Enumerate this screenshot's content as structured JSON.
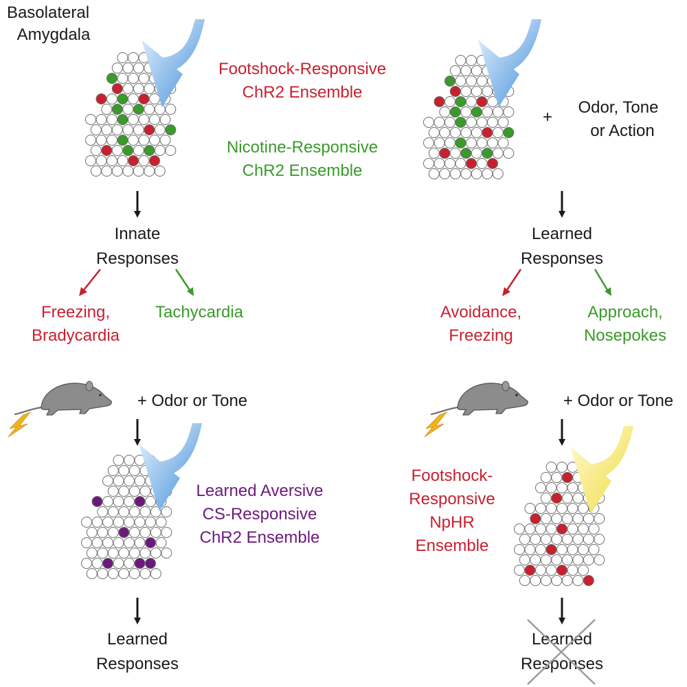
{
  "colors": {
    "red": "#c8202f",
    "green": "#3a9a2a",
    "purple": "#6b1a7c",
    "chr2_light": "#7fb3e6",
    "nphr_light": "#f7eb7a",
    "rat": "#8c8c8c",
    "shock": "#f0b41e"
  },
  "top_left": {
    "region_label": [
      "Basolateral",
      "Amygdala"
    ],
    "footshock_ensemble": [
      "Footshock-Responsive",
      "ChR2 Ensemble"
    ],
    "nicotine_ensemble": [
      "Nicotine-Responsive",
      "ChR2 Ensemble"
    ],
    "outcome": [
      "Innate",
      "Responses"
    ],
    "aversive_responses": [
      "Freezing,",
      "Bradycardia"
    ],
    "appetitive_responses": [
      "Tachycardia"
    ]
  },
  "top_right": {
    "plus": "+",
    "stimulus": [
      "Odor, Tone",
      "or Action"
    ],
    "outcome": [
      "Learned",
      "Responses"
    ],
    "aversive_responses": [
      "Avoidance,",
      "Freezing"
    ],
    "appetitive_responses": [
      "Approach,",
      "Nosepokes"
    ]
  },
  "bottom_left": {
    "stimulus": "+  Odor or Tone",
    "ensemble": [
      "Learned Aversive",
      "CS-Responsive",
      "ChR2 Ensemble"
    ],
    "outcome": [
      "Learned",
      "Responses"
    ]
  },
  "bottom_right": {
    "stimulus": "+  Odor or Tone",
    "ensemble": [
      "Footshock-",
      "Responsive",
      "NpHR",
      "Ensemble"
    ],
    "outcome": [
      "Learned",
      "Responses"
    ],
    "outcome_blocked": true
  }
}
